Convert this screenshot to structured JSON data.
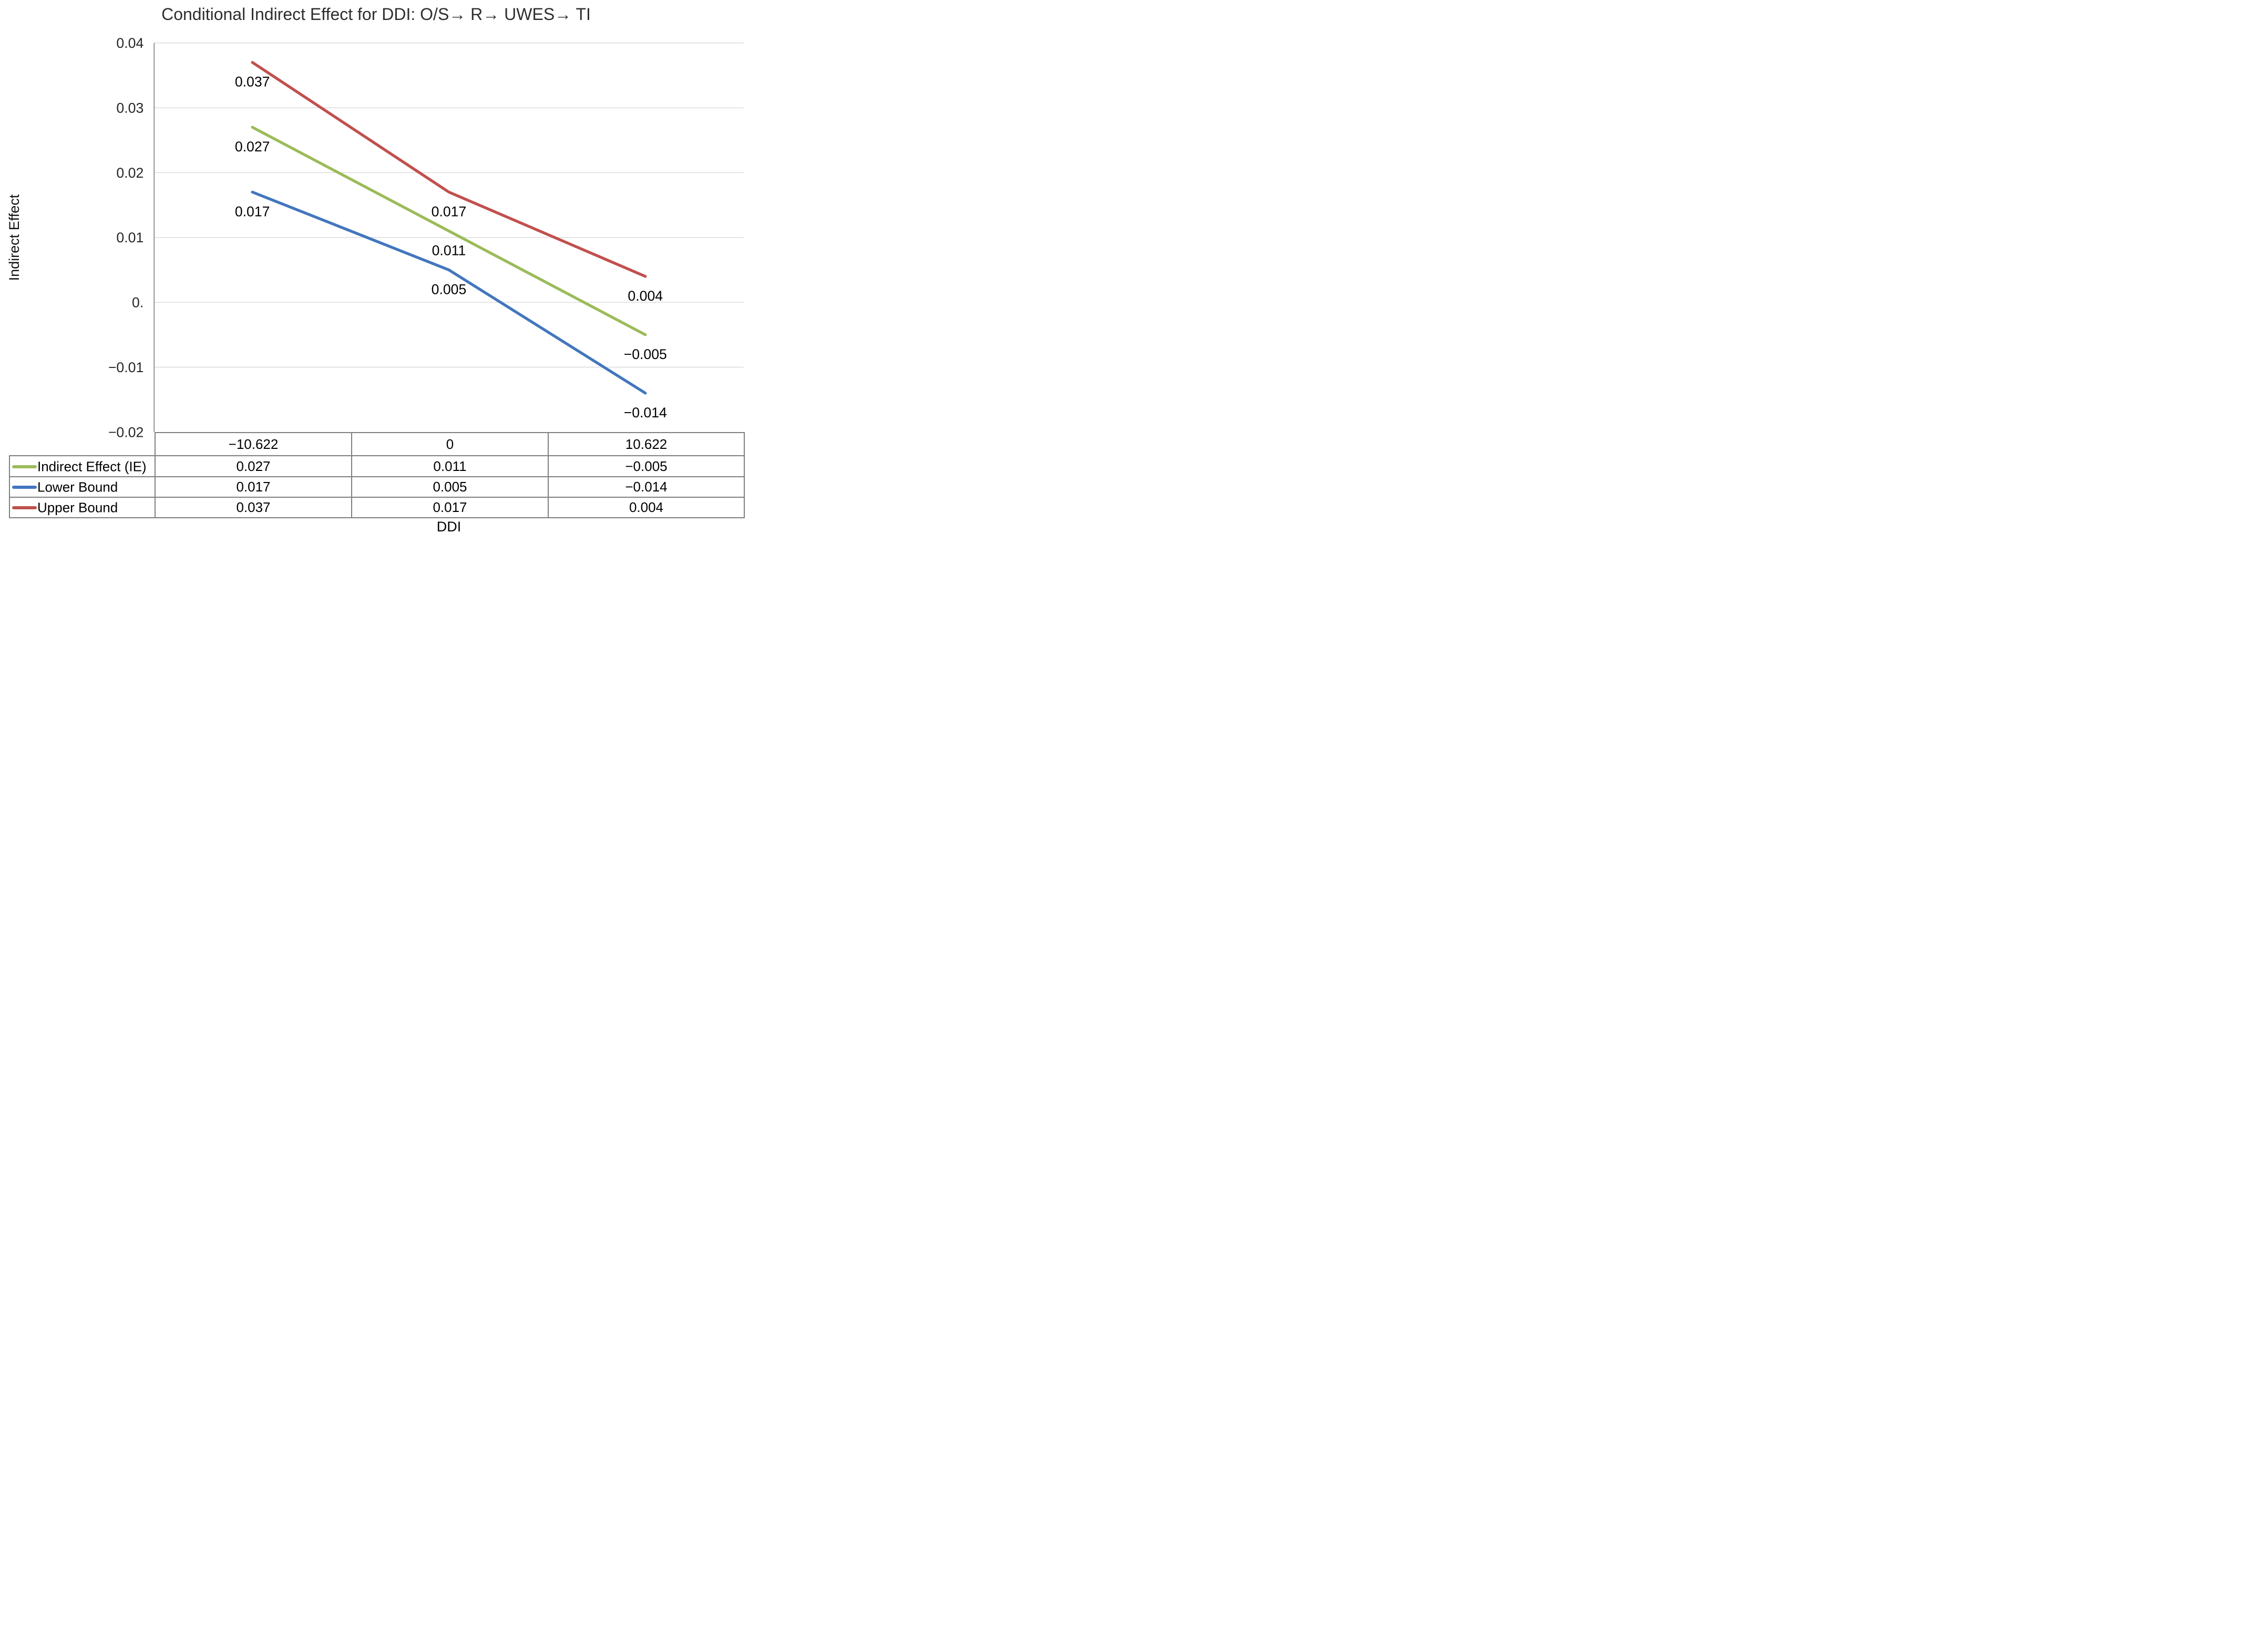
{
  "chart_data": {
    "type": "line",
    "title": "Conditional Indirect Effect for DDI: O/S→ R→ UWES→ TI",
    "xlabel": "DDI",
    "ylabel": "Indirect Effect",
    "categories": [
      "−10.622",
      "0",
      "10.622"
    ],
    "x_values": [
      -10.622,
      0,
      10.622
    ],
    "ylim": [
      -0.02,
      0.04
    ],
    "ytick_labels": [
      "0.04",
      "0.03",
      "0.02",
      "0.01",
      "0.",
      "−0.01",
      "−0.02"
    ],
    "grid": true,
    "legend_position": "left-column-of-data-table",
    "series": [
      {
        "name": "Indirect Effect (IE)",
        "color": "#9BBB59",
        "values": [
          0.027,
          0.011,
          -0.005
        ],
        "value_labels": [
          "0.027",
          "0.011",
          "−0.005"
        ]
      },
      {
        "name": "Lower Bound",
        "color": "#4276BE",
        "values": [
          0.017,
          0.005,
          -0.014
        ],
        "value_labels": [
          "0.017",
          "0.005",
          "−0.014"
        ]
      },
      {
        "name": "Upper Bound",
        "color": "#C0504D",
        "values": [
          0.037,
          0.017,
          0.004
        ],
        "value_labels": [
          "0.037",
          "0.017",
          "0.004"
        ]
      }
    ],
    "colors": {
      "gridline": "#D9D9D9",
      "axis": "#808080",
      "table_border": "#7F7F7F",
      "label_text": "#000000",
      "tick_text": "#262626"
    }
  }
}
